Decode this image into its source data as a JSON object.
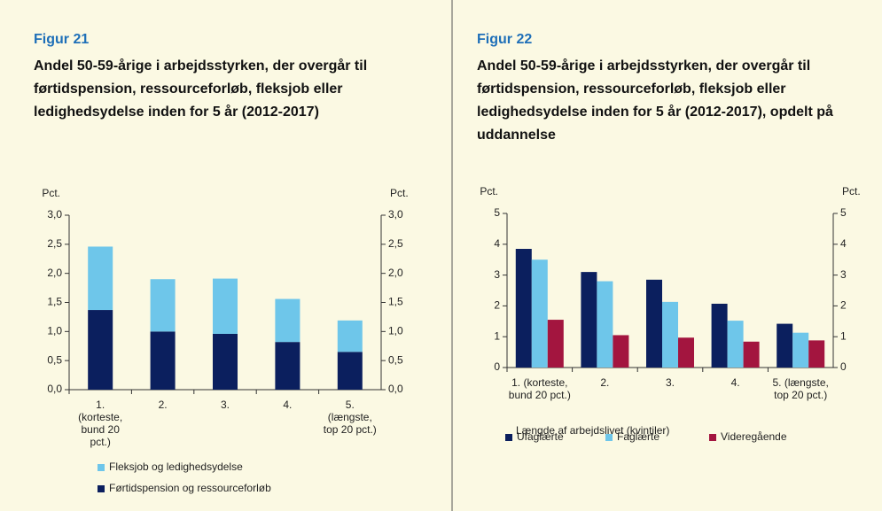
{
  "chart_data": [
    {
      "type": "stacked_bar",
      "label": "Figur 21",
      "title": "Andel 50-59-årige i arbejdsstyrken, der overgår til førtidspension, ressourceforløb, fleksjob eller ledighedsydelse inden for 5 år (2012-2017)",
      "ylabel_left": "Pct.",
      "ylabel_right": "Pct.",
      "categories": [
        "1. (korteste, bund 20 pct.)",
        "2.",
        "3.",
        "4.",
        "5. (længste, top 20 pct.)"
      ],
      "series": [
        {
          "name": "Fleksjob og ledighedsydelse",
          "color": "#6ec6ea",
          "values": [
            1.09,
            0.9,
            0.95,
            0.74,
            0.54
          ]
        },
        {
          "name": "Førtidspension og ressourceforløb",
          "color": "#0b1f5e",
          "values": [
            1.37,
            1.0,
            0.96,
            0.82,
            0.65
          ]
        }
      ],
      "ylim": [
        0,
        3
      ],
      "yticks": [
        {
          "value": 0,
          "label": "0,0"
        },
        {
          "value": 0.5,
          "label": "0,5"
        },
        {
          "value": 1,
          "label": "1,0"
        },
        {
          "value": 1.5,
          "label": "1,5"
        },
        {
          "value": 2,
          "label": "2,0"
        },
        {
          "value": 2.5,
          "label": "2,5"
        },
        {
          "value": 3,
          "label": "3,0"
        }
      ]
    },
    {
      "type": "grouped_bar",
      "label": "Figur 22",
      "title": "Andel 50-59-årige i arbejdsstyrken, der overgår til førtidspension, ressourceforløb, fleksjob eller ledighedsydelse inden for 5 år (2012-2017), opdelt på uddannelse",
      "ylabel_left": "Pct.",
      "ylabel_right": "Pct.",
      "xlabel": "Længde af arbejdslivet (kvintiler)",
      "categories": [
        "1. (korteste, bund 20 pct.)",
        "2.",
        "3.",
        "4.",
        "5. (længste, top 20 pct.)"
      ],
      "series": [
        {
          "name": "Ufaglærte",
          "color": "#0b1f5e",
          "values": [
            3.85,
            3.1,
            2.85,
            2.07,
            1.42
          ]
        },
        {
          "name": "Faglærte",
          "color": "#6ec6ea",
          "values": [
            3.5,
            2.8,
            2.13,
            1.52,
            1.13
          ]
        },
        {
          "name": "Videregående",
          "color": "#a3153f",
          "values": [
            1.55,
            1.05,
            0.97,
            0.84,
            0.88
          ]
        }
      ],
      "ylim": [
        0,
        5
      ],
      "yticks": [
        0,
        1,
        2,
        3,
        4,
        5
      ]
    }
  ]
}
